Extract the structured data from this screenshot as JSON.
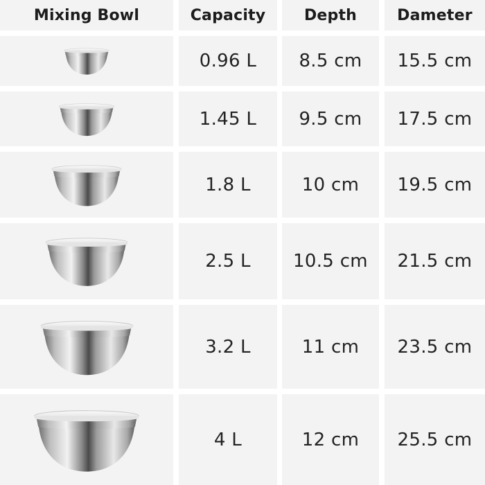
{
  "headers": {
    "bowl": "Mixing Bowl",
    "capacity": "Capacity",
    "depth": "Depth",
    "diameter": "Dameter"
  },
  "rows": [
    {
      "capacity": "0.96 L",
      "depth": "8.5 cm",
      "diameter": "15.5 cm"
    },
    {
      "capacity": "1.45 L",
      "depth": "9.5 cm",
      "diameter": "17.5 cm"
    },
    {
      "capacity": "1.8 L",
      "depth": "10 cm",
      "diameter": "19.5 cm"
    },
    {
      "capacity": "2.5 L",
      "depth": "10.5 cm",
      "diameter": "21.5 cm"
    },
    {
      "capacity": "3.2 L",
      "depth": "11 cm",
      "diameter": "23.5 cm"
    },
    {
      "capacity": "4 L",
      "depth": "12 cm",
      "diameter": "25.5 cm"
    }
  ],
  "colors": {
    "cell_bg": "#f3f3f3",
    "gap": "#ffffff",
    "text": "#1f1f1f"
  }
}
